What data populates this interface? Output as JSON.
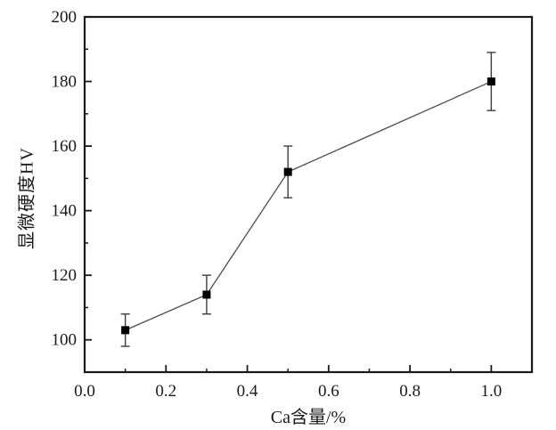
{
  "chart_data": {
    "type": "line",
    "title": "",
    "xlabel": "Ca含量/%",
    "ylabel": "显微硬度HV",
    "series": [
      {
        "name": "microhardness",
        "x": [
          0.1,
          0.3,
          0.5,
          1.0
        ],
        "y": [
          103,
          114,
          152,
          180
        ],
        "yerr": [
          5,
          6,
          8,
          9
        ],
        "marker": "filled-square",
        "marker_color": "#000000",
        "line_color": "#4d4d4d"
      }
    ],
    "xlim": [
      0,
      1.1
    ],
    "ylim": [
      90,
      200
    ],
    "x_major_ticks": [
      0.0,
      0.2,
      0.4,
      0.6,
      0.8,
      1.0
    ],
    "x_tick_labels": [
      "0.0",
      "0.2",
      "0.4",
      "0.6",
      "0.8",
      "1.0"
    ],
    "x_minor_ticks": [
      0.1,
      0.3,
      0.5,
      0.7,
      0.9
    ],
    "y_major_ticks": [
      100,
      120,
      140,
      160,
      180,
      200
    ],
    "y_tick_labels": [
      "100",
      "120",
      "140",
      "160",
      "180",
      "200"
    ],
    "y_minor_ticks": [
      110,
      130,
      150,
      170,
      190
    ],
    "grid": false,
    "legend": null,
    "frame_color": "#1a1a1a",
    "tick_color": "#1a1a1a"
  }
}
